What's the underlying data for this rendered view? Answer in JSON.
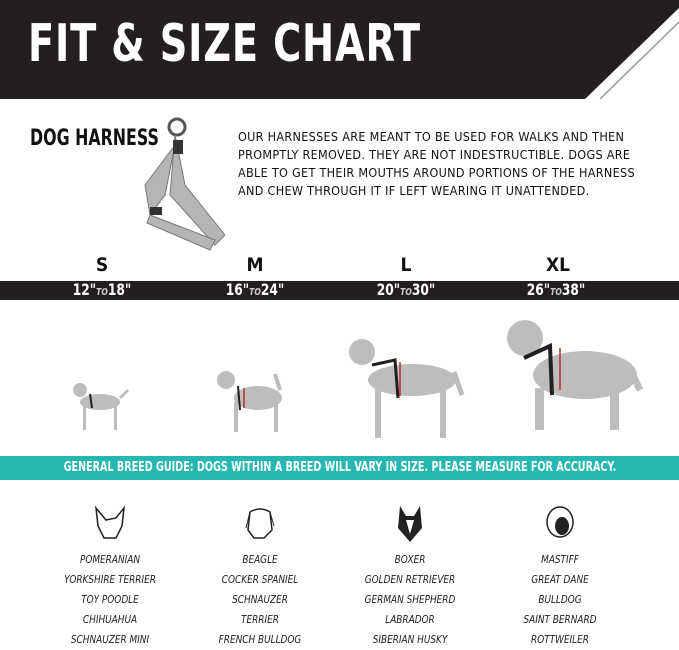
{
  "header": {
    "title": "FIT & SIZE CHART"
  },
  "product": {
    "name": "DOG HARNESS",
    "description": "OUR HARNESSES ARE MEANT TO BE USED FOR WALKS AND THEN PROMPTLY REMOVED. THEY ARE NOT INDESTRUCTIBLE. DOGS ARE ABLE TO GET THEIR MOUTHS AROUND PORTIONS OF THE HARNESS AND CHEW THROUGH IT IF LEFT WEARING IT UNATTENDED."
  },
  "sizes": [
    {
      "label": "S",
      "min": "12\"",
      "to": "TO",
      "max": "18\""
    },
    {
      "label": "M",
      "min": "16\"",
      "to": "TO",
      "max": "24\""
    },
    {
      "label": "L",
      "min": "20\"",
      "to": "TO",
      "max": "30\""
    },
    {
      "label": "XL",
      "min": "26\"",
      "to": "TO",
      "max": "38\""
    }
  ],
  "guide": "GENERAL BREED GUIDE: DOGS WITHIN A BREED WILL VARY IN SIZE. PLEASE MEASURE FOR ACCURACY.",
  "breeds": [
    [
      "POMERANIAN",
      "YORKSHIRE TERRIER",
      "TOY POODLE",
      "CHIHUAHUA",
      "SCHNAUZER MINI"
    ],
    [
      "BEAGLE",
      "COCKER SPANIEL",
      "SCHNAUZER",
      "TERRIER",
      "FRENCH BULLDOG"
    ],
    [
      "BOXER",
      "GOLDEN RETRIEVER",
      "GERMAN SHEPHERD",
      "LABRADOR",
      "SIBERIAN HUSKY"
    ],
    [
      "MASTIFF",
      "GREAT DANE",
      "BULLDOG",
      "SAINT BERNARD",
      "ROTTWEILER"
    ]
  ],
  "colors": {
    "dark": "#231f20",
    "teal": "#26b7b1",
    "dog": "#bdbdbd",
    "measure": "#c0282d"
  }
}
